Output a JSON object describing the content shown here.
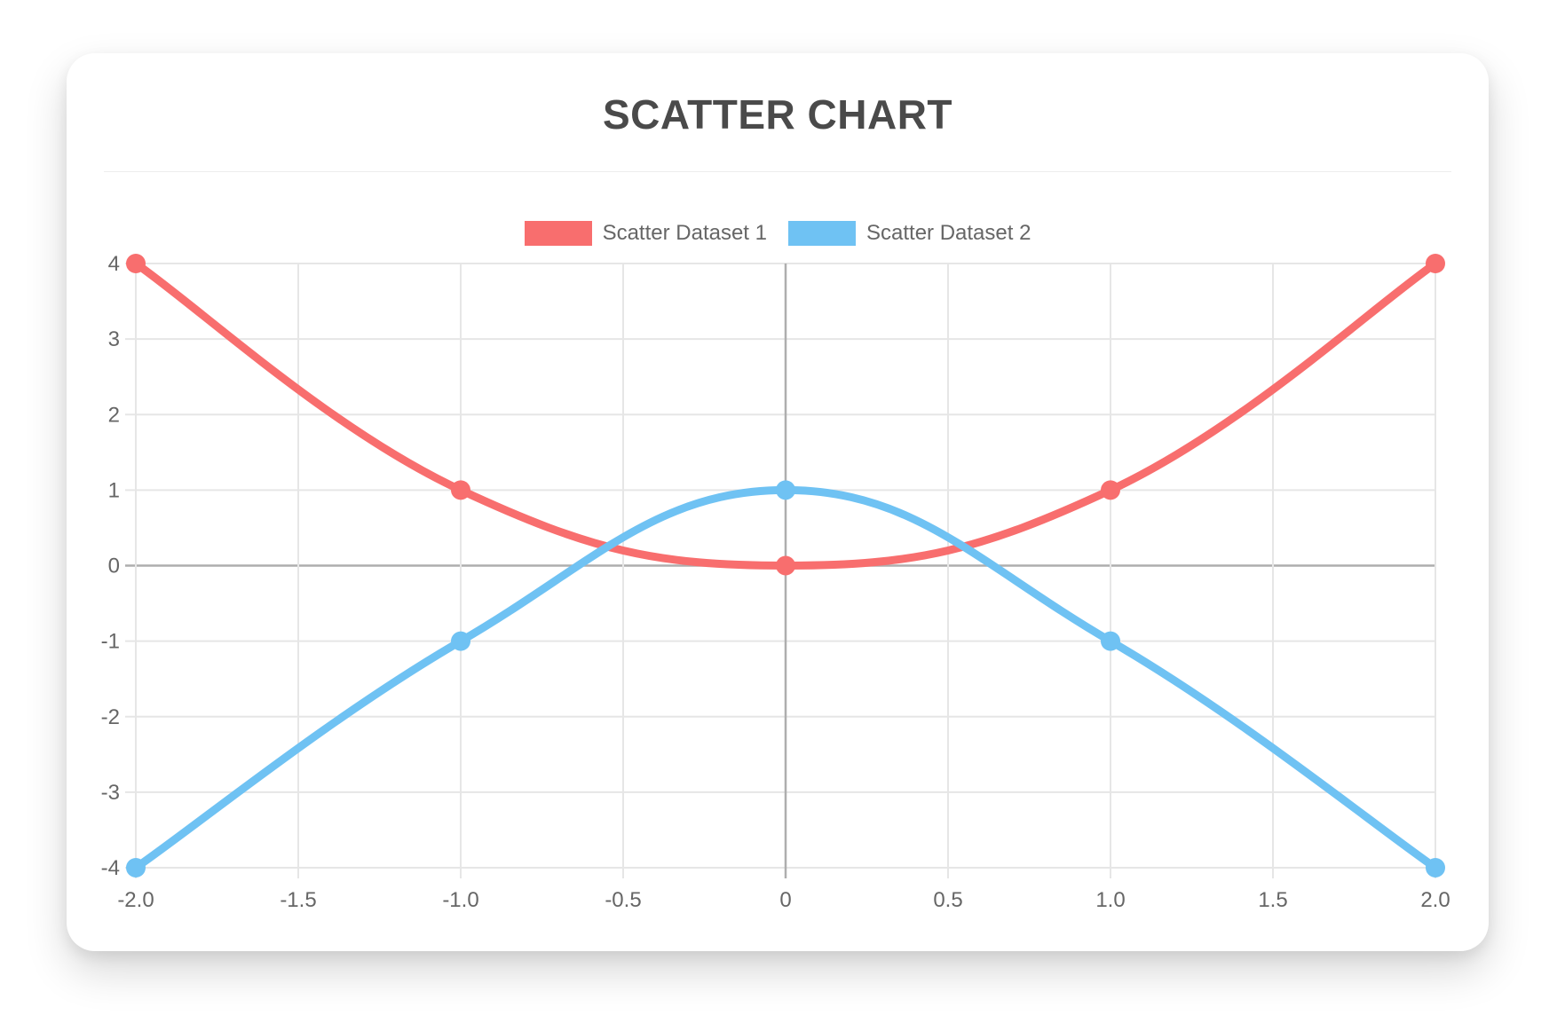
{
  "chart_data": {
    "type": "scatter",
    "title": "SCATTER CHART",
    "xlabel": "",
    "ylabel": "",
    "xlim": [
      -2,
      2
    ],
    "ylim": [
      -4,
      4
    ],
    "grid": true,
    "legend_position": "top",
    "x_ticks": [
      {
        "value": -2,
        "label": "-2.0"
      },
      {
        "value": -1.5,
        "label": "-1.5"
      },
      {
        "value": -1,
        "label": "-1.0"
      },
      {
        "value": -0.5,
        "label": "-0.5"
      },
      {
        "value": 0,
        "label": "0"
      },
      {
        "value": 0.5,
        "label": "0.5"
      },
      {
        "value": 1,
        "label": "1.0"
      },
      {
        "value": 1.5,
        "label": "1.5"
      },
      {
        "value": 2,
        "label": "2.0"
      }
    ],
    "y_ticks": [
      {
        "value": 4,
        "label": "4"
      },
      {
        "value": 3,
        "label": "3"
      },
      {
        "value": 2,
        "label": "2"
      },
      {
        "value": 1,
        "label": "1"
      },
      {
        "value": 0,
        "label": "0"
      },
      {
        "value": -1,
        "label": "-1"
      },
      {
        "value": -2,
        "label": "-2"
      },
      {
        "value": -3,
        "label": "-3"
      },
      {
        "value": -4,
        "label": "-4"
      }
    ],
    "series": [
      {
        "name": "Scatter Dataset 1",
        "color": "#f86e6e",
        "curve": "smooth",
        "points": [
          [
            -2,
            4
          ],
          [
            -1,
            1
          ],
          [
            0,
            0
          ],
          [
            1,
            1
          ],
          [
            2,
            4
          ]
        ]
      },
      {
        "name": "Scatter Dataset 2",
        "color": "#6fc2f3",
        "curve": "smooth",
        "points": [
          [
            -2,
            -4
          ],
          [
            -1,
            -1
          ],
          [
            0,
            1
          ],
          [
            1,
            -1
          ],
          [
            2,
            -4
          ]
        ]
      }
    ],
    "colors": {
      "title": "#4a4a4a",
      "tick_label": "#666666",
      "grid": "#e6e6e6",
      "zero_line": "#aeaeae",
      "card_background": "#ffffff",
      "divider": "#ededed"
    }
  }
}
